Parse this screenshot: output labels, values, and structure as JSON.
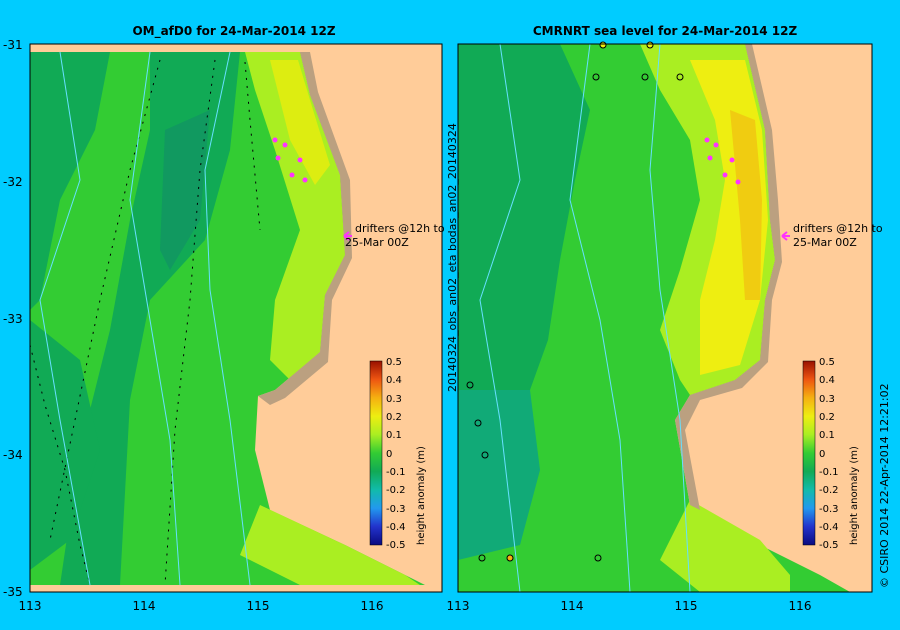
{
  "left_panel": {
    "title": "OM_afD0 for 24-Mar-2014 12Z",
    "annotation_line1": "drifters @12h to",
    "annotation_line2": "25-Mar 00Z",
    "colorbar_label": "height anomaly (m)"
  },
  "right_panel": {
    "title": "CMRNRT sea level  for 24-Mar-2014 12Z",
    "annotation_line1": "drifters @12h to",
    "annotation_line2": "25-Mar 00Z",
    "colorbar_label": "height anomaly (m)"
  },
  "x_ticks": [
    "113",
    "114",
    "115",
    "116"
  ],
  "y_ticks": [
    "-31",
    "-32",
    "-33",
    "-34",
    "-35"
  ],
  "colorbar_ticks": [
    "0.5",
    "0.4",
    "0.3",
    "0.2",
    "0.1",
    "0",
    "-0.1",
    "-0.2",
    "-0.3",
    "-0.4",
    "-0.5"
  ],
  "side_label": "20140324_obs_an02_eta  bodas_an02_20140324",
  "footer": "© CSIRO 2014   22-Apr-2014 12:21:02",
  "colors": {
    "background": "#00ccff",
    "land": "#ffcc99",
    "shelf": "#bba080",
    "drifter": "#ff33ff",
    "track": "#66e0ff"
  }
}
